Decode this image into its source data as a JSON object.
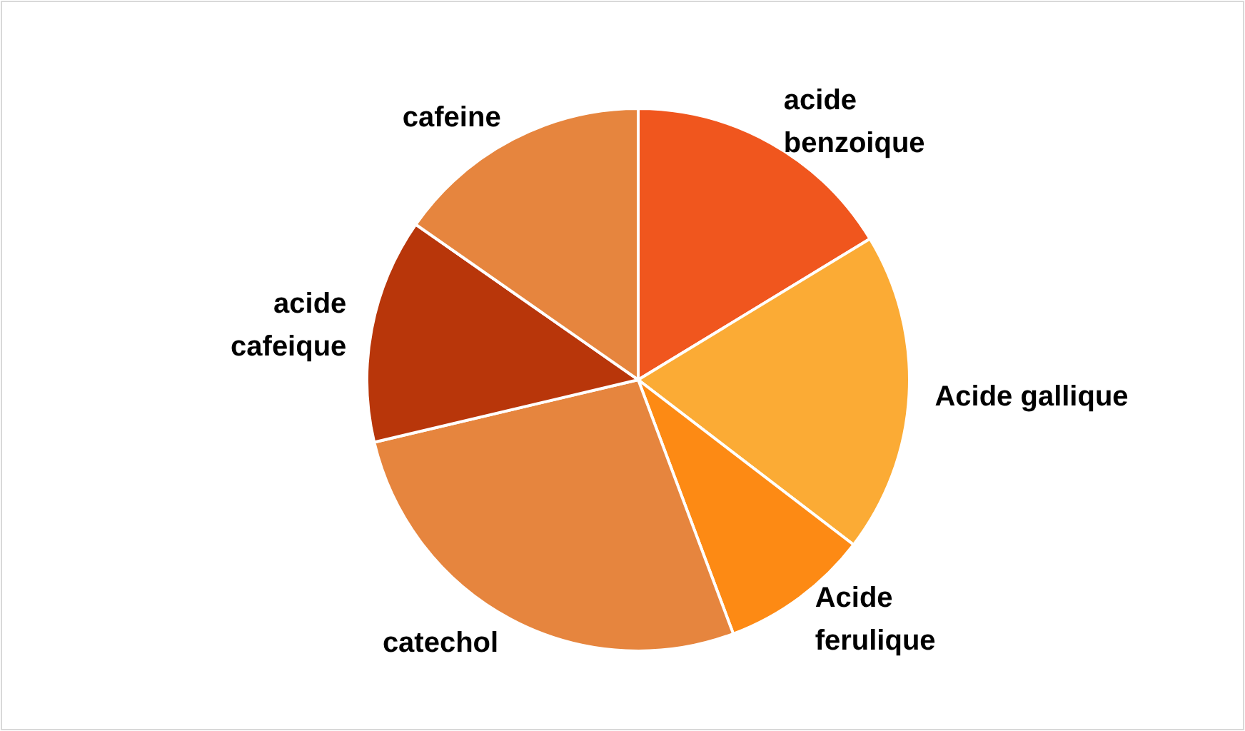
{
  "chart_data": {
    "type": "pie",
    "categories": [
      "acide benzoique",
      "Acide gallique",
      "Acide ferulique",
      "catechol",
      "acide cafeique",
      "cafeine"
    ],
    "values": [
      16.3,
      19.1,
      8.9,
      27.0,
      13.4,
      15.3
    ],
    "colors": [
      "#f0561e",
      "#fbab35",
      "#fd8a14",
      "#e6853e",
      "#b8360a",
      "#e6853e"
    ]
  }
}
